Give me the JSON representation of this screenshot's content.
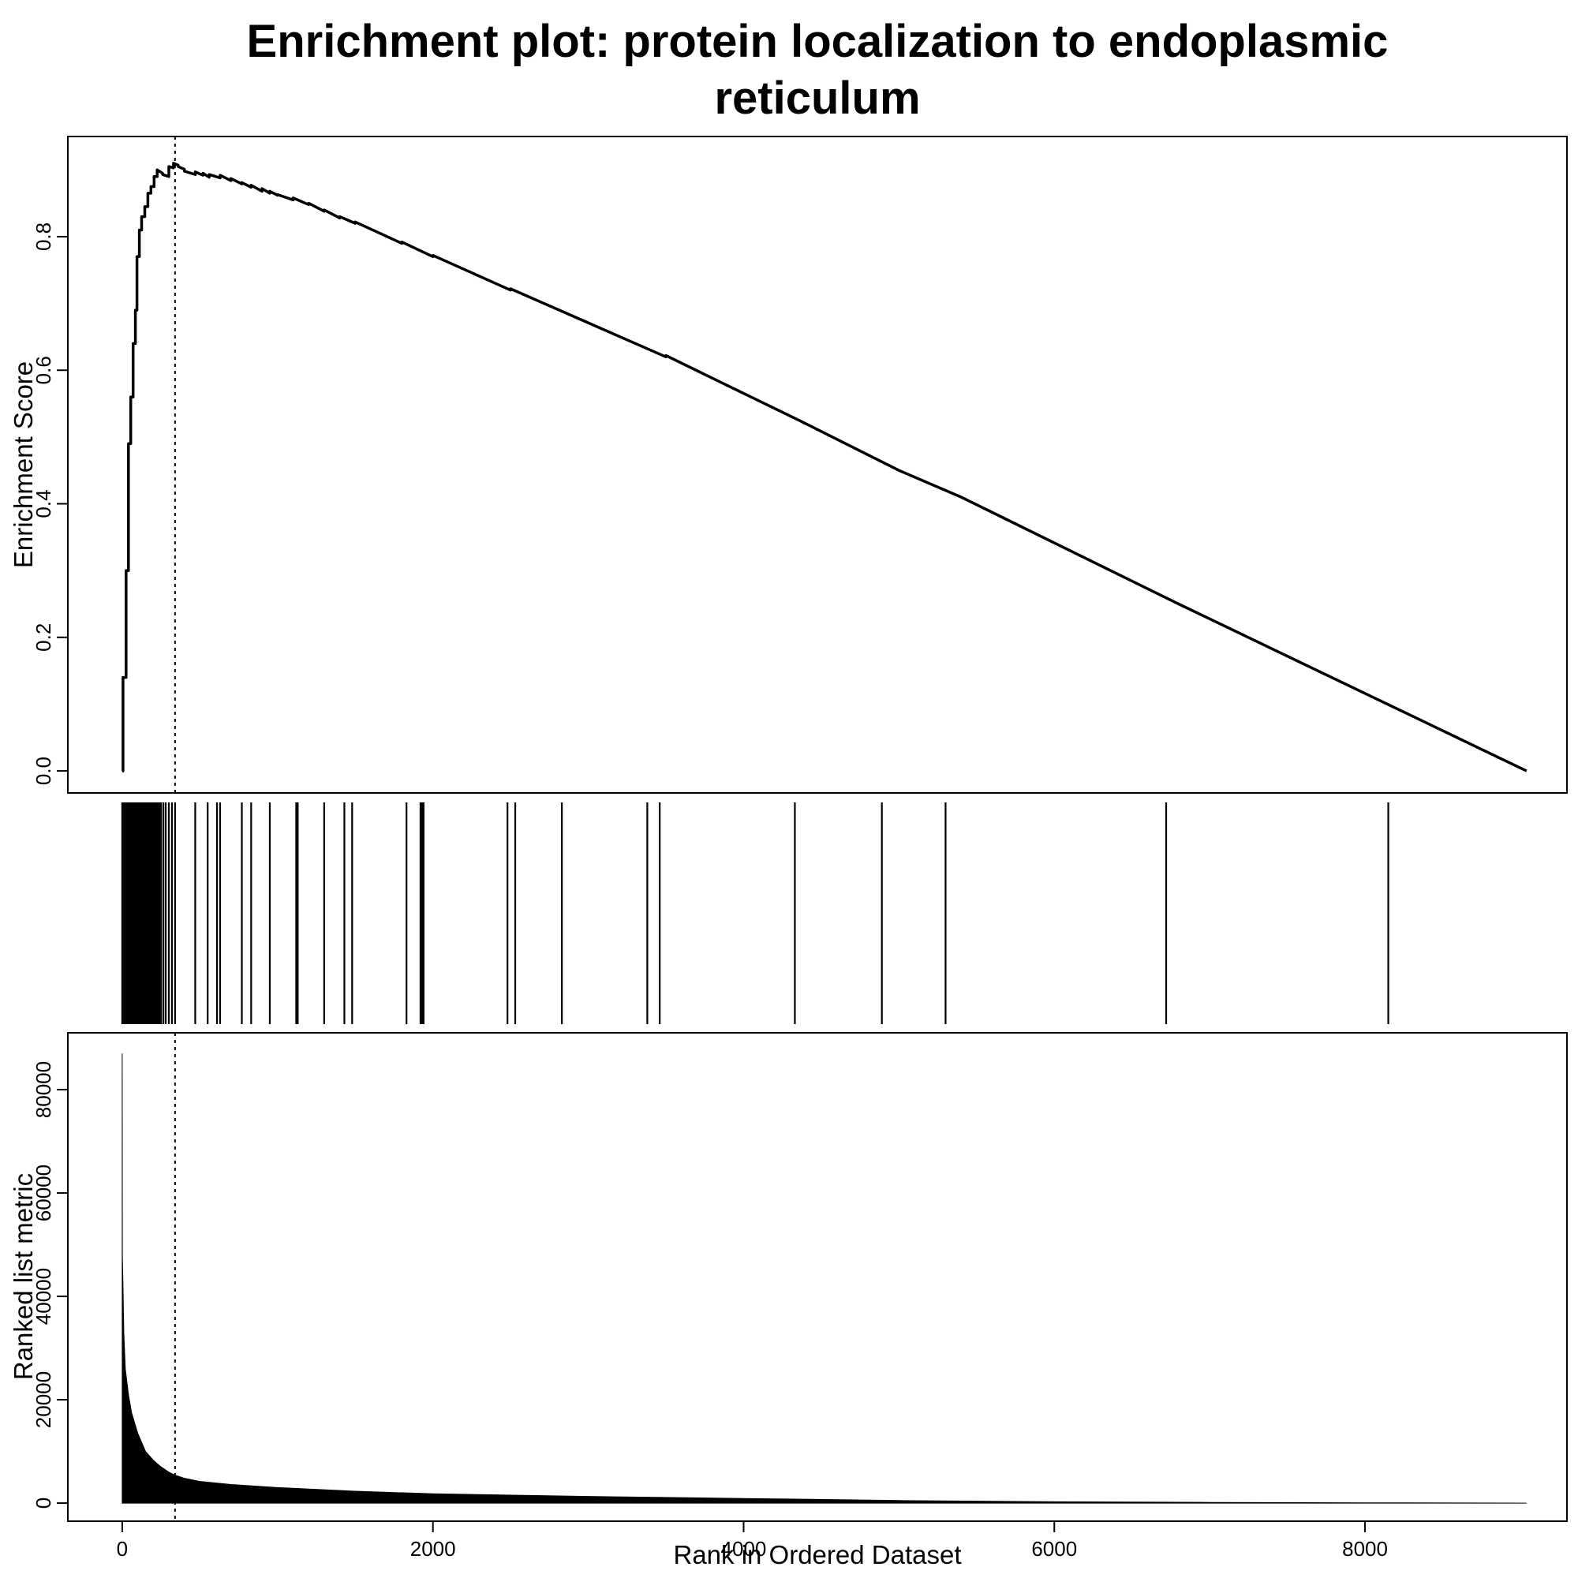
{
  "chart_data": {
    "title_line1": "Enrichment plot: protein localization to endoplasmic",
    "title_line2": "reticulum",
    "type": "line",
    "es_panel": {
      "ylabel": "Enrichment Score",
      "ylim": [
        -0.033,
        0.95
      ],
      "yticks": [
        0.0,
        0.2,
        0.4,
        0.6,
        0.8
      ],
      "ytick_labels": [
        "0.0",
        "0.2",
        "0.4",
        "0.6",
        "0.8"
      ],
      "series": [
        {
          "x": [
            0,
            5,
            5,
            25,
            25,
            40,
            40,
            55,
            55,
            70,
            70,
            85,
            85,
            95,
            95,
            110,
            110,
            125,
            125,
            145,
            145,
            165,
            165,
            185,
            185,
            205,
            205,
            225,
            225,
            260,
            260,
            300,
            300,
            330,
            330,
            360,
            360,
            400,
            400,
            470,
            470,
            520,
            520,
            560,
            560,
            630,
            630,
            700,
            700,
            770,
            770,
            830,
            830,
            900,
            900,
            950,
            950,
            1000,
            1000,
            1100,
            1100,
            1200,
            1200,
            1300,
            1300,
            1400,
            1400,
            1500,
            1500,
            1800,
            1800,
            2000,
            2000,
            2500,
            2500,
            3500,
            3500,
            4400,
            5000,
            5400,
            6800,
            9040
          ],
          "y": [
            0.0,
            0.0,
            0.14,
            0.14,
            0.3,
            0.3,
            0.49,
            0.49,
            0.56,
            0.56,
            0.64,
            0.64,
            0.69,
            0.69,
            0.77,
            0.77,
            0.81,
            0.81,
            0.83,
            0.83,
            0.845,
            0.845,
            0.865,
            0.865,
            0.875,
            0.875,
            0.89,
            0.89,
            0.9,
            0.895,
            0.893,
            0.89,
            0.905,
            0.903,
            0.91,
            0.907,
            0.905,
            0.901,
            0.898,
            0.893,
            0.897,
            0.892,
            0.895,
            0.889,
            0.893,
            0.888,
            0.892,
            0.884,
            0.887,
            0.879,
            0.881,
            0.874,
            0.877,
            0.868,
            0.872,
            0.865,
            0.868,
            0.862,
            0.863,
            0.855,
            0.858,
            0.848,
            0.85,
            0.838,
            0.84,
            0.828,
            0.83,
            0.82,
            0.822,
            0.79,
            0.792,
            0.77,
            0.772,
            0.72,
            0.722,
            0.62,
            0.622,
            0.52,
            0.45,
            0.41,
            0.25,
            0.0
          ]
        }
      ],
      "vline_x": 340
    },
    "hits_panel": {
      "x": [
        0,
        8,
        15,
        22,
        30,
        38,
        45,
        52,
        60,
        68,
        75,
        83,
        90,
        97,
        105,
        112,
        120,
        128,
        135,
        142,
        150,
        158,
        165,
        172,
        180,
        188,
        195,
        203,
        210,
        218,
        225,
        232,
        240,
        250,
        265,
        280,
        300,
        320,
        340,
        470,
        550,
        610,
        630,
        770,
        830,
        950,
        1120,
        1130,
        1300,
        1430,
        1480,
        1830,
        1920,
        1930,
        1940,
        2480,
        2530,
        2830,
        3380,
        3460,
        4330,
        4890,
        5300,
        6720,
        8150
      ]
    },
    "metric_panel": {
      "xlabel": "Rank in Ordered Dataset",
      "ylabel": "Ranked list metric",
      "xlim": [
        -350,
        9300
      ],
      "ylim": [
        -3500,
        91000
      ],
      "xticks": [
        0,
        2000,
        4000,
        6000,
        8000
      ],
      "xtick_labels": [
        "0",
        "2000",
        "4000",
        "6000",
        "8000"
      ],
      "yticks": [
        0,
        20000,
        40000,
        60000,
        80000
      ],
      "ytick_labels": [
        "0",
        "20000",
        "40000",
        "60000",
        "80000"
      ],
      "series": [
        {
          "x": [
            0,
            1,
            5,
            10,
            20,
            40,
            60,
            100,
            150,
            200,
            250,
            300,
            340,
            400,
            500,
            700,
            1000,
            1500,
            2000,
            3000,
            4000,
            5000,
            6000,
            7000,
            8000,
            9040
          ],
          "y": [
            87000,
            48000,
            42000,
            33000,
            26000,
            21000,
            17500,
            13500,
            10000,
            8300,
            7000,
            6000,
            5400,
            4800,
            4200,
            3600,
            3000,
            2300,
            1800,
            1300,
            900,
            500,
            250,
            130,
            60,
            0
          ]
        }
      ],
      "vline_x": 340
    }
  }
}
